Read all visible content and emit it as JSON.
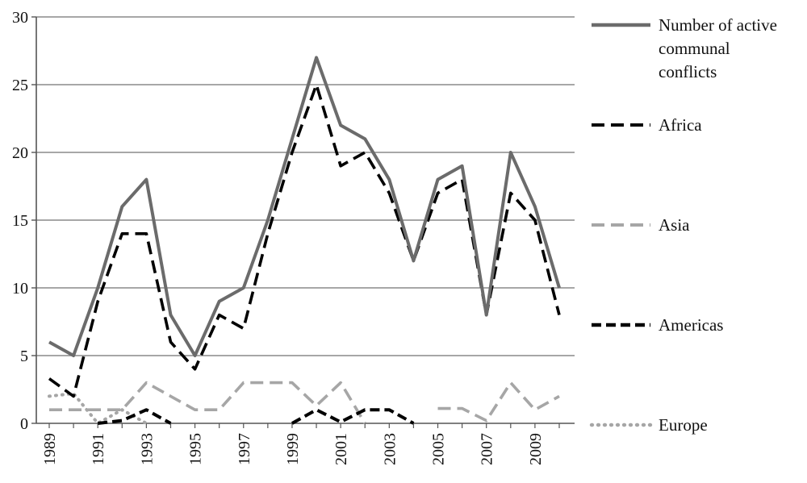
{
  "chart_data": {
    "type": "line",
    "x": [
      1989,
      1990,
      1991,
      1992,
      1993,
      1994,
      1995,
      1996,
      1997,
      1998,
      1999,
      2000,
      2001,
      2002,
      2003,
      2004,
      2005,
      2006,
      2007,
      2008,
      2009,
      2010
    ],
    "x_tick_labels": [
      "1989",
      "1991",
      "1993",
      "1995",
      "1997",
      "1999",
      "2001",
      "2003",
      "2005",
      "2007",
      "2009"
    ],
    "ylim": [
      0,
      30
    ],
    "y_ticks": [
      0,
      5,
      10,
      15,
      20,
      25,
      30
    ],
    "grid": "horizontal",
    "legend_position": "right",
    "series": [
      {
        "name": "Number of active communal conflicts",
        "name_lines": [
          "Number of active",
          "communal",
          "conflicts"
        ],
        "color": "#6b6b6b",
        "style": "solid",
        "values": [
          6,
          5,
          10,
          16,
          18,
          8,
          5,
          9,
          10,
          15,
          21,
          27,
          22,
          21,
          18,
          12,
          18,
          19,
          8,
          20,
          16,
          10
        ]
      },
      {
        "name": "Africa",
        "name_lines": [
          "Africa"
        ],
        "color": "#000000",
        "style": "dashed",
        "values": [
          3.3,
          2,
          9,
          14,
          14,
          6,
          4,
          8,
          7,
          14,
          20,
          25,
          19,
          20,
          17,
          12,
          17,
          18,
          8,
          17,
          15,
          8
        ]
      },
      {
        "name": "Asia",
        "name_lines": [
          "Asia"
        ],
        "color": "#a6a6a6",
        "style": "dashed",
        "values": [
          1,
          1,
          1,
          1,
          3,
          2,
          1,
          1,
          3,
          3,
          3,
          1.3,
          3,
          0,
          null,
          null,
          1.1,
          1.1,
          0.2,
          3,
          1,
          2
        ]
      },
      {
        "name": "Americas",
        "name_lines": [
          "Americas"
        ],
        "color": "#000000",
        "style": "dashed-bold",
        "values": [
          null,
          null,
          0,
          0.2,
          1,
          0,
          null,
          null,
          null,
          null,
          0,
          1,
          0.1,
          1,
          1,
          0,
          null,
          null,
          null,
          null,
          null,
          null
        ]
      },
      {
        "name": "Europe",
        "name_lines": [
          "Europe"
        ],
        "color": "#a6a6a6",
        "style": "dotted",
        "values": [
          2,
          2.2,
          0,
          1,
          0,
          null,
          null,
          null,
          null,
          null,
          null,
          null,
          null,
          null,
          null,
          null,
          null,
          null,
          null,
          null,
          null,
          null
        ]
      }
    ]
  }
}
